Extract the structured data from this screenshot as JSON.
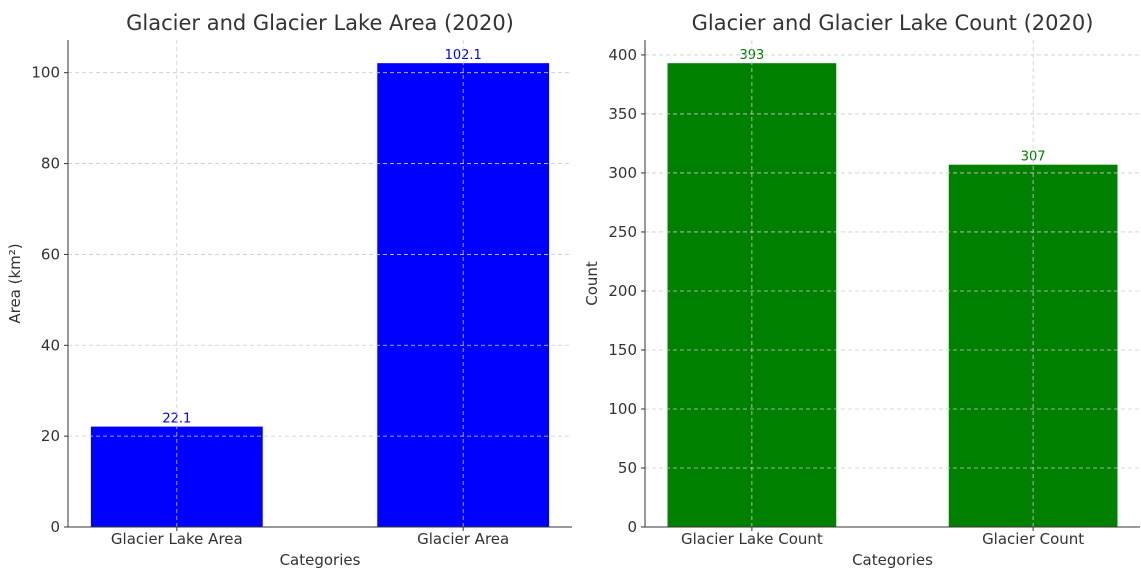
{
  "chart_data": [
    {
      "type": "bar",
      "title": "Glacier and Glacier Lake Area (2020)",
      "x_label": "Categories",
      "y_label": "Area (km²)",
      "categories": [
        "Glacier Lake Area",
        "Glacier Area"
      ],
      "values": [
        22.1,
        102.1
      ],
      "color": "#0000ff",
      "ylim": [
        0,
        107.2
      ],
      "yticks": [
        0,
        20,
        40,
        60,
        80,
        100
      ],
      "grid": true
    },
    {
      "type": "bar",
      "title": "Glacier and Glacier Lake Count (2020)",
      "x_label": "Categories",
      "y_label": "Count",
      "categories": [
        "Glacier Lake Count",
        "Glacier Count"
      ],
      "values": [
        393,
        307
      ],
      "color": "#008000",
      "ylim": [
        0,
        412.65
      ],
      "yticks": [
        0,
        50,
        100,
        150,
        200,
        250,
        300,
        350,
        400
      ],
      "grid": true
    }
  ]
}
